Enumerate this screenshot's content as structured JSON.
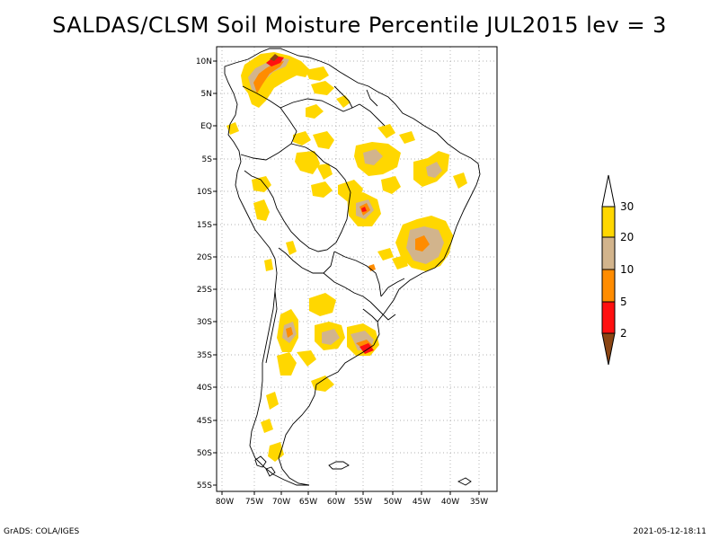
{
  "title": "SALDAS/CLSM Soil Moisture Percentile JUL2015 lev = 3",
  "lat_ticks": [
    "10N",
    "5N",
    "EQ",
    "5S",
    "10S",
    "15S",
    "20S",
    "25S",
    "30S",
    "35S",
    "40S",
    "45S",
    "50S",
    "55S"
  ],
  "lon_ticks": [
    "80W",
    "75W",
    "70W",
    "65W",
    "60W",
    "55W",
    "50W",
    "45W",
    "40W",
    "35W"
  ],
  "legend": {
    "labels": [
      "2",
      "5",
      "10",
      "20",
      "30"
    ],
    "colors": {
      "below2": "#8B4513",
      "c2_5": "#ff1010",
      "c5_10": "#ff8c00",
      "c10_20": "#d2b48c",
      "c20_30": "#ffd700",
      "above30": "#ffffff"
    }
  },
  "footer": {
    "left": "GrADS: COLA/IGES",
    "right": "2021-05-12-18:11"
  }
}
